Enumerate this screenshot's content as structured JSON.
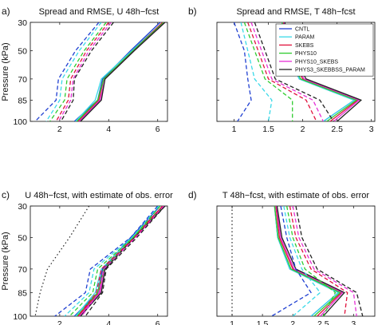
{
  "chart_data": [
    {
      "type": "line",
      "panel_label": "a)",
      "title": "Spread and RMSE, U 48h−fcst",
      "xlabel": "",
      "ylabel": "Pressure (kPa)",
      "xlim": [
        0.8,
        6.4
      ],
      "ylim": [
        100,
        30
      ],
      "x_ticks": [
        "2",
        "4",
        "6"
      ],
      "x_tick_values": [
        2,
        4,
        6
      ],
      "y_ticks": [
        "30",
        "50",
        "70",
        "85",
        "100"
      ],
      "y_tick_values": [
        30,
        50,
        70,
        85,
        100
      ],
      "pressure_levels": [
        30,
        50,
        70,
        85,
        100
      ],
      "series": [
        {
          "name": "CNTL",
          "color": "#1f3fd1",
          "style": "solid",
          "values": [
            6.1,
            4.9,
            3.75,
            3.55,
            2.6
          ]
        },
        {
          "name": "PARAM",
          "color": "#39d9e8",
          "style": "solid",
          "values": [
            6.2,
            4.95,
            3.7,
            3.45,
            2.65
          ]
        },
        {
          "name": "SKEBS",
          "color": "#e0123c",
          "style": "solid",
          "values": [
            6.2,
            5.0,
            3.8,
            3.6,
            2.75
          ]
        },
        {
          "name": "PHYS10",
          "color": "#2ecc2e",
          "style": "solid",
          "values": [
            6.25,
            5.0,
            3.8,
            3.55,
            2.7
          ]
        },
        {
          "name": "PHYS10_SKEBS",
          "color": "#e62fd6",
          "style": "solid",
          "values": [
            6.3,
            5.05,
            3.85,
            3.65,
            2.8
          ]
        },
        {
          "name": "PHYS3_SKEBSSS_PARAM",
          "color": "#222222",
          "style": "solid",
          "values": [
            6.3,
            5.05,
            3.85,
            3.7,
            2.85
          ]
        },
        {
          "name": "CNTL",
          "color": "#1f3fd1",
          "style": "dashed",
          "values": [
            3.6,
            2.65,
            1.95,
            1.85,
            1.0
          ]
        },
        {
          "name": "PARAM",
          "color": "#39d9e8",
          "style": "dashed",
          "values": [
            3.7,
            2.8,
            2.1,
            2.0,
            1.45
          ]
        },
        {
          "name": "SKEBS",
          "color": "#e0123c",
          "style": "dashed",
          "values": [
            4.0,
            3.1,
            2.45,
            2.35,
            1.85
          ]
        },
        {
          "name": "PHYS10",
          "color": "#2ecc2e",
          "style": "dashed",
          "values": [
            3.9,
            3.0,
            2.3,
            2.2,
            1.6
          ]
        },
        {
          "name": "PHYS10_SKEBS",
          "color": "#e62fd6",
          "style": "dashed",
          "values": [
            4.1,
            3.2,
            2.55,
            2.45,
            1.95
          ]
        },
        {
          "name": "PHYS3_SKEBSSS_PARAM",
          "color": "#222222",
          "style": "dashed",
          "values": [
            4.2,
            3.3,
            2.6,
            2.55,
            2.05
          ]
        }
      ]
    },
    {
      "type": "line",
      "panel_label": "b)",
      "title": "Spread and RMSE, T 48h−fcst",
      "xlabel": "",
      "ylabel": "",
      "xlim": [
        0.75,
        3.05
      ],
      "ylim": [
        100,
        30
      ],
      "x_ticks": [
        "1",
        "1.5",
        "2",
        "2.5",
        "3"
      ],
      "x_tick_values": [
        1,
        1.5,
        2,
        2.5,
        3
      ],
      "pressure_levels": [
        30,
        50,
        70,
        85,
        100
      ],
      "legend_position": "top-right",
      "legend": [
        "CNTL",
        "PARAM",
        "SKEBS",
        "PHYS10",
        "PHYS10_SKEBS",
        "PHYS3_SKEBBSS_PARAM"
      ],
      "series": [
        {
          "name": "CNTL",
          "color": "#1f3fd1",
          "style": "solid",
          "values": [
            1.7,
            1.75,
            1.95,
            2.75,
            2.3
          ]
        },
        {
          "name": "PARAM",
          "color": "#39d9e8",
          "style": "solid",
          "values": [
            1.7,
            1.75,
            1.95,
            2.75,
            2.3
          ]
        },
        {
          "name": "SKEBS",
          "color": "#e0123c",
          "style": "solid",
          "values": [
            1.72,
            1.78,
            2.0,
            2.8,
            2.4
          ]
        },
        {
          "name": "PHYS10",
          "color": "#2ecc2e",
          "style": "solid",
          "values": [
            1.7,
            1.76,
            1.97,
            2.78,
            2.35
          ]
        },
        {
          "name": "PHYS10_SKEBS",
          "color": "#e62fd6",
          "style": "solid",
          "values": [
            1.73,
            1.8,
            2.02,
            2.82,
            2.45
          ]
        },
        {
          "name": "PHYS3_SKEBSSS_PARAM",
          "color": "#222222",
          "style": "solid",
          "values": [
            1.74,
            1.82,
            2.05,
            2.85,
            2.5
          ]
        },
        {
          "name": "CNTL",
          "color": "#1f3fd1",
          "style": "dashed",
          "values": [
            1.0,
            1.15,
            1.2,
            1.25,
            1.05
          ]
        },
        {
          "name": "PARAM",
          "color": "#39d9e8",
          "style": "dashed",
          "values": [
            1.1,
            1.2,
            1.3,
            1.55,
            1.5
          ]
        },
        {
          "name": "SKEBS",
          "color": "#e0123c",
          "style": "dashed",
          "values": [
            1.2,
            1.35,
            1.5,
            2.05,
            2.2
          ]
        },
        {
          "name": "PHYS10",
          "color": "#2ecc2e",
          "style": "dashed",
          "values": [
            1.15,
            1.3,
            1.45,
            1.85,
            1.85
          ]
        },
        {
          "name": "PHYS10_SKEBS",
          "color": "#e62fd6",
          "style": "dashed",
          "values": [
            1.25,
            1.4,
            1.55,
            2.15,
            2.3
          ]
        },
        {
          "name": "PHYS3_SKEBSSS_PARAM",
          "color": "#222222",
          "style": "dashed",
          "values": [
            1.3,
            1.45,
            1.6,
            2.25,
            2.45
          ]
        }
      ]
    },
    {
      "type": "line",
      "panel_label": "c)",
      "title": "U 48h−fcst, with estimate of obs. error",
      "xlabel": "",
      "ylabel": "Pressure (kPa)",
      "xlim": [
        0.8,
        6.4
      ],
      "ylim": [
        100,
        30
      ],
      "x_ticks": [
        "2",
        "4",
        "6"
      ],
      "x_tick_values": [
        2,
        4,
        6
      ],
      "y_ticks": [
        "30",
        "50",
        "70",
        "85",
        "100"
      ],
      "y_tick_values": [
        30,
        50,
        70,
        85,
        100
      ],
      "pressure_levels": [
        30,
        50,
        70,
        85,
        100
      ],
      "obs_error": {
        "color": "#222222",
        "style": "dotted",
        "values": [
          3.2,
          2.4,
          1.5,
          1.2,
          1.0
        ]
      },
      "series": [
        {
          "name": "CNTL",
          "color": "#1f3fd1",
          "style": "solid",
          "values": [
            6.1,
            4.9,
            3.75,
            3.55,
            2.6
          ]
        },
        {
          "name": "PARAM",
          "color": "#39d9e8",
          "style": "solid",
          "values": [
            6.2,
            4.95,
            3.7,
            3.45,
            2.65
          ]
        },
        {
          "name": "SKEBS",
          "color": "#e0123c",
          "style": "solid",
          "values": [
            6.2,
            5.0,
            3.8,
            3.6,
            2.75
          ]
        },
        {
          "name": "PHYS10",
          "color": "#2ecc2e",
          "style": "solid",
          "values": [
            6.25,
            5.0,
            3.8,
            3.55,
            2.7
          ]
        },
        {
          "name": "PHYS10_SKEBS",
          "color": "#e62fd6",
          "style": "solid",
          "values": [
            6.3,
            5.05,
            3.85,
            3.65,
            2.8
          ]
        },
        {
          "name": "PHYS3_SKEBSSS_PARAM",
          "color": "#222222",
          "style": "solid",
          "values": [
            6.3,
            5.05,
            3.85,
            3.7,
            2.85
          ]
        },
        {
          "name": "CNTL",
          "color": "#1f3fd1",
          "style": "dashed",
          "values": [
            6.0,
            4.9,
            3.25,
            3.05,
            1.8
          ]
        },
        {
          "name": "PARAM",
          "color": "#39d9e8",
          "style": "dashed",
          "values": [
            6.05,
            4.95,
            3.4,
            3.2,
            2.2
          ]
        },
        {
          "name": "SKEBS",
          "color": "#e0123c",
          "style": "dashed",
          "values": [
            6.2,
            5.05,
            3.7,
            3.5,
            2.75
          ]
        },
        {
          "name": "PHYS10",
          "color": "#2ecc2e",
          "style": "dashed",
          "values": [
            6.1,
            5.0,
            3.55,
            3.35,
            2.4
          ]
        },
        {
          "name": "PHYS10_SKEBS",
          "color": "#e62fd6",
          "style": "dashed",
          "values": [
            6.25,
            5.1,
            3.8,
            3.6,
            2.9
          ]
        },
        {
          "name": "PHYS3_SKEBSSS_PARAM",
          "color": "#222222",
          "style": "dashed",
          "values": [
            6.3,
            5.15,
            3.9,
            3.75,
            3.05
          ]
        }
      ]
    },
    {
      "type": "line",
      "panel_label": "d)",
      "title": "T 48h−fcst, with estimate of obs. error",
      "xlabel": "",
      "ylabel": "",
      "xlim": [
        0.75,
        3.35
      ],
      "ylim": [
        100,
        30
      ],
      "x_ticks": [
        "1",
        "1.5",
        "2",
        "2.5",
        "3"
      ],
      "x_tick_values": [
        1,
        1.5,
        2,
        2.5,
        3
      ],
      "pressure_levels": [
        30,
        50,
        70,
        85,
        100
      ],
      "obs_error": {
        "color": "#222222",
        "style": "dotted",
        "values": [
          1.0,
          1.0,
          1.0,
          1.0,
          1.0
        ]
      },
      "series": [
        {
          "name": "CNTL",
          "color": "#1f3fd1",
          "style": "solid",
          "values": [
            1.7,
            1.75,
            1.95,
            2.75,
            2.3
          ]
        },
        {
          "name": "PARAM",
          "color": "#39d9e8",
          "style": "solid",
          "values": [
            1.7,
            1.75,
            1.95,
            2.75,
            2.3
          ]
        },
        {
          "name": "SKEBS",
          "color": "#e0123c",
          "style": "solid",
          "values": [
            1.72,
            1.78,
            2.0,
            2.8,
            2.4
          ]
        },
        {
          "name": "PHYS10",
          "color": "#2ecc2e",
          "style": "solid",
          "values": [
            1.7,
            1.76,
            1.97,
            2.78,
            2.35
          ]
        },
        {
          "name": "PHYS10_SKEBS",
          "color": "#e62fd6",
          "style": "solid",
          "values": [
            1.73,
            1.8,
            2.02,
            2.82,
            2.45
          ]
        },
        {
          "name": "PHYS3_SKEBSSS_PARAM",
          "color": "#222222",
          "style": "solid",
          "values": [
            1.74,
            1.82,
            2.05,
            2.85,
            2.5
          ]
        },
        {
          "name": "CNTL",
          "color": "#1f3fd1",
          "style": "dashed",
          "values": [
            1.8,
            1.9,
            2.05,
            2.3,
            1.65
          ]
        },
        {
          "name": "PARAM",
          "color": "#39d9e8",
          "style": "dashed",
          "values": [
            1.85,
            1.95,
            2.15,
            2.45,
            2.0
          ]
        },
        {
          "name": "SKEBS",
          "color": "#e0123c",
          "style": "dashed",
          "values": [
            1.95,
            2.05,
            2.3,
            2.9,
            2.85
          ]
        },
        {
          "name": "PHYS10",
          "color": "#2ecc2e",
          "style": "dashed",
          "values": [
            1.9,
            2.0,
            2.2,
            2.7,
            2.5
          ]
        },
        {
          "name": "PHYS10_SKEBS",
          "color": "#e62fd6",
          "style": "dashed",
          "values": [
            2.0,
            2.1,
            2.35,
            3.0,
            3.05
          ]
        },
        {
          "name": "PHYS3_SKEBSSS_PARAM",
          "color": "#222222",
          "style": "dashed",
          "values": [
            2.05,
            2.15,
            2.4,
            3.05,
            3.15
          ]
        }
      ]
    }
  ]
}
